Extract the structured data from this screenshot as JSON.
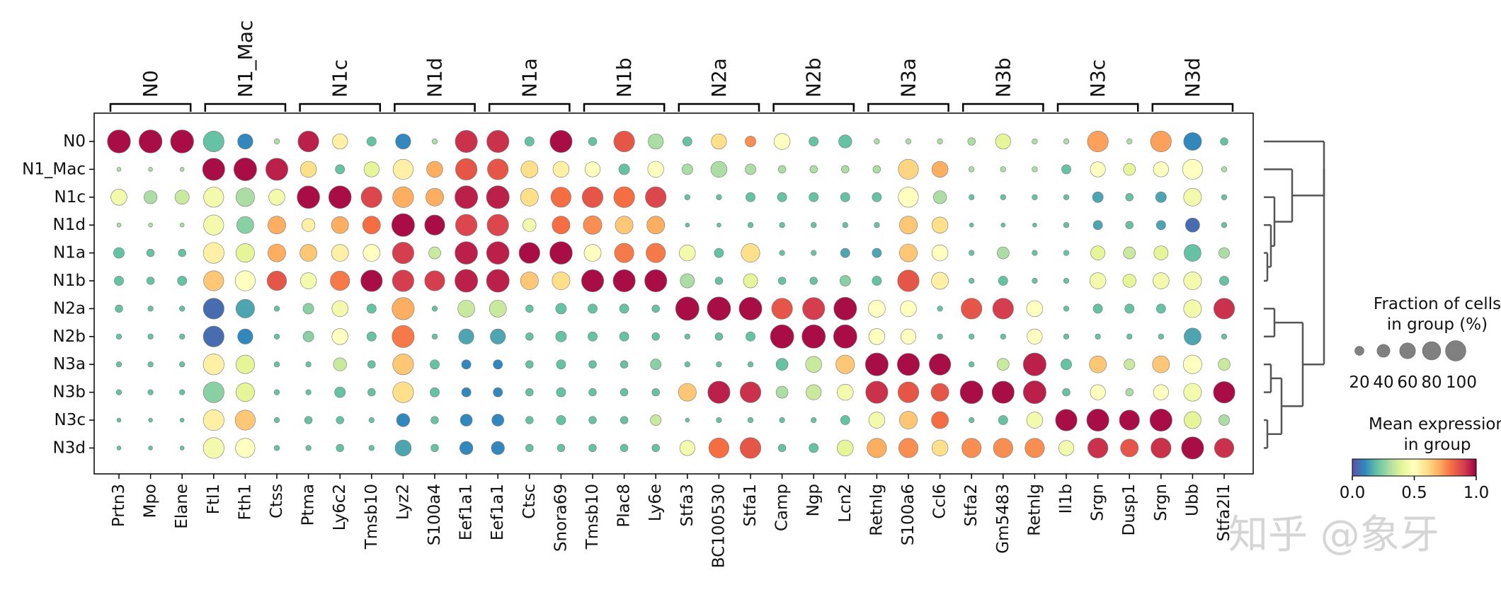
{
  "chart_data": {
    "type": "dotplot",
    "title": "",
    "row_labels": [
      "N0",
      "N1_Mac",
      "N1c",
      "N1d",
      "N1a",
      "N1b",
      "N2a",
      "N2b",
      "N3a",
      "N3b",
      "N3c",
      "N3d"
    ],
    "groups": [
      {
        "name": "N0",
        "genes": [
          "Prtn3",
          "Mpo",
          "Elane"
        ]
      },
      {
        "name": "N1_Mac",
        "genes": [
          "Ftl1",
          "Fth1",
          "Ctss"
        ]
      },
      {
        "name": "N1c",
        "genes": [
          "Ptma",
          "Ly6c2",
          "Tmsb10"
        ]
      },
      {
        "name": "N1d",
        "genes": [
          "Lyz2",
          "S100a4",
          "Eef1a1"
        ]
      },
      {
        "name": "N1a",
        "genes": [
          "Eef1a1",
          "Ctsc",
          "Snora69"
        ]
      },
      {
        "name": "N1b",
        "genes": [
          "Tmsb10",
          "Plac8",
          "Ly6e"
        ]
      },
      {
        "name": "N2a",
        "genes": [
          "Stfa3",
          "BC100530",
          "Stfa1"
        ]
      },
      {
        "name": "N2b",
        "genes": [
          "Camp",
          "Ngp",
          "Lcn2"
        ]
      },
      {
        "name": "N3a",
        "genes": [
          "Retnlg",
          "S100a6",
          "Ccl6"
        ]
      },
      {
        "name": "N3b",
        "genes": [
          "Stfa2",
          "Gm5483",
          "Retnlg"
        ]
      },
      {
        "name": "N3c",
        "genes": [
          "Il1b",
          "Srgn",
          "Dusp1"
        ]
      },
      {
        "name": "N3d",
        "genes": [
          "Srgn",
          "Ubb",
          "Stfa2l1"
        ]
      }
    ],
    "fraction_pct": [
      [
        92,
        92,
        92,
        75,
        40,
        5,
        75,
        40,
        15,
        40,
        5,
        85,
        85,
        15,
        85,
        12,
        75,
        40,
        15,
        40,
        20,
        45,
        15,
        30,
        5,
        5,
        5,
        10,
        40,
        5,
        5,
        75,
        5,
        75,
        55,
        10
      ],
      [
        3,
        3,
        3,
        85,
        90,
        85,
        45,
        15,
        40,
        70,
        45,
        80,
        75,
        50,
        45,
        40,
        20,
        45,
        20,
        45,
        20,
        10,
        10,
        10,
        10,
        70,
        45,
        5,
        5,
        5,
        15,
        40,
        25,
        40,
        70,
        5
      ],
      [
        45,
        30,
        35,
        70,
        60,
        45,
        88,
        88,
        75,
        75,
        55,
        90,
        90,
        55,
        70,
        75,
        75,
        75,
        5,
        5,
        15,
        15,
        15,
        15,
        15,
        70,
        30,
        5,
        5,
        5,
        5,
        20,
        10,
        20,
        55,
        5
      ],
      [
        3,
        3,
        3,
        70,
        50,
        55,
        30,
        50,
        55,
        90,
        70,
        80,
        80,
        30,
        55,
        60,
        55,
        55,
        3,
        3,
        5,
        5,
        5,
        5,
        5,
        55,
        45,
        3,
        3,
        3,
        5,
        15,
        10,
        15,
        35,
        5
      ],
      [
        20,
        10,
        10,
        75,
        60,
        55,
        50,
        50,
        50,
        80,
        25,
        88,
        88,
        75,
        88,
        50,
        65,
        65,
        45,
        15,
        60,
        5,
        5,
        15,
        15,
        55,
        45,
        5,
        25,
        5,
        5,
        35,
        25,
        35,
        50,
        20
      ],
      [
        15,
        10,
        15,
        70,
        70,
        65,
        45,
        65,
        80,
        80,
        70,
        90,
        90,
        55,
        55,
        85,
        85,
        85,
        35,
        10,
        35,
        10,
        10,
        20,
        15,
        80,
        50,
        5,
        15,
        5,
        5,
        45,
        30,
        45,
        55,
        15
      ],
      [
        10,
        5,
        5,
        75,
        60,
        5,
        20,
        45,
        15,
        85,
        5,
        50,
        50,
        10,
        20,
        15,
        15,
        10,
        95,
        95,
        90,
        75,
        85,
        90,
        50,
        45,
        5,
        75,
        75,
        45,
        5,
        15,
        15,
        15,
        55,
        75
      ],
      [
        5,
        5,
        5,
        75,
        40,
        5,
        20,
        45,
        15,
        85,
        5,
        40,
        40,
        10,
        20,
        15,
        15,
        10,
        5,
        10,
        15,
        95,
        95,
        95,
        45,
        40,
        5,
        5,
        5,
        40,
        5,
        5,
        5,
        5,
        50,
        5
      ],
      [
        5,
        5,
        5,
        75,
        60,
        5,
        5,
        30,
        10,
        75,
        15,
        15,
        15,
        10,
        15,
        10,
        10,
        20,
        5,
        5,
        5,
        25,
        45,
        60,
        90,
        85,
        80,
        5,
        25,
        90,
        20,
        50,
        20,
        50,
        60,
        25
      ],
      [
        5,
        5,
        5,
        75,
        60,
        5,
        5,
        20,
        10,
        75,
        15,
        15,
        15,
        10,
        15,
        10,
        10,
        10,
        55,
        85,
        75,
        25,
        40,
        45,
        85,
        75,
        55,
        90,
        85,
        90,
        10,
        40,
        10,
        40,
        55,
        80
      ],
      [
        3,
        3,
        3,
        75,
        70,
        5,
        10,
        10,
        5,
        30,
        10,
        25,
        25,
        10,
        15,
        10,
        10,
        20,
        3,
        5,
        5,
        5,
        5,
        15,
        45,
        55,
        50,
        5,
        15,
        45,
        80,
        85,
        70,
        85,
        50,
        20
      ],
      [
        3,
        3,
        3,
        75,
        65,
        5,
        5,
        10,
        5,
        45,
        10,
        30,
        30,
        10,
        10,
        10,
        10,
        10,
        40,
        70,
        75,
        10,
        15,
        45,
        65,
        65,
        45,
        65,
        65,
        65,
        40,
        70,
        55,
        70,
        85,
        65
      ]
    ],
    "mean_expression": [
      [
        0.98,
        0.98,
        0.98,
        0.2,
        0.1,
        0.3,
        0.95,
        0.55,
        0.2,
        0.1,
        0.3,
        0.92,
        0.92,
        0.2,
        0.98,
        0.2,
        0.85,
        0.3,
        0.2,
        0.6,
        0.75,
        0.5,
        0.2,
        0.2,
        0.3,
        0.3,
        0.3,
        0.3,
        0.4,
        0.3,
        0.3,
        0.72,
        0.3,
        0.72,
        0.1,
        0.2
      ],
      [
        0.3,
        0.3,
        0.3,
        0.98,
        0.98,
        0.95,
        0.6,
        0.2,
        0.4,
        0.55,
        0.7,
        0.85,
        0.85,
        0.6,
        0.55,
        0.5,
        0.2,
        0.5,
        0.3,
        0.3,
        0.3,
        0.3,
        0.3,
        0.3,
        0.3,
        0.62,
        0.7,
        0.3,
        0.3,
        0.3,
        0.2,
        0.5,
        0.4,
        0.5,
        0.5,
        0.3
      ],
      [
        0.45,
        0.3,
        0.35,
        0.45,
        0.3,
        0.45,
        0.98,
        0.98,
        0.88,
        0.7,
        0.7,
        0.95,
        0.95,
        0.6,
        0.8,
        0.85,
        0.8,
        0.88,
        0.2,
        0.2,
        0.2,
        0.2,
        0.2,
        0.2,
        0.2,
        0.5,
        0.3,
        0.2,
        0.2,
        0.2,
        0.2,
        0.15,
        0.2,
        0.15,
        0.45,
        0.2
      ],
      [
        0.3,
        0.3,
        0.3,
        0.45,
        0.25,
        0.7,
        0.55,
        0.7,
        0.8,
        0.98,
        0.98,
        0.88,
        0.88,
        0.45,
        0.8,
        0.75,
        0.65,
        0.7,
        0.2,
        0.2,
        0.2,
        0.2,
        0.2,
        0.2,
        0.2,
        0.65,
        0.6,
        0.2,
        0.2,
        0.2,
        0.2,
        0.15,
        0.2,
        0.15,
        0.05,
        0.2
      ],
      [
        0.2,
        0.2,
        0.2,
        0.55,
        0.4,
        0.7,
        0.65,
        0.55,
        0.5,
        0.9,
        0.35,
        0.95,
        0.95,
        0.98,
        0.98,
        0.5,
        0.78,
        0.78,
        0.45,
        0.2,
        0.6,
        0.2,
        0.2,
        0.15,
        0.15,
        0.65,
        0.5,
        0.2,
        0.3,
        0.2,
        0.2,
        0.4,
        0.35,
        0.4,
        0.2,
        0.3
      ],
      [
        0.2,
        0.2,
        0.2,
        0.65,
        0.5,
        0.85,
        0.45,
        0.78,
        0.98,
        0.9,
        0.9,
        0.95,
        0.95,
        0.65,
        0.6,
        0.98,
        0.98,
        0.98,
        0.3,
        0.2,
        0.4,
        0.2,
        0.2,
        0.25,
        0.2,
        0.85,
        0.55,
        0.2,
        0.2,
        0.2,
        0.2,
        0.45,
        0.4,
        0.45,
        0.45,
        0.2
      ],
      [
        0.2,
        0.2,
        0.2,
        0.05,
        0.15,
        0.2,
        0.25,
        0.45,
        0.2,
        0.7,
        0.2,
        0.35,
        0.35,
        0.2,
        0.2,
        0.2,
        0.2,
        0.2,
        0.98,
        0.98,
        0.98,
        0.85,
        0.9,
        0.98,
        0.5,
        0.5,
        0.2,
        0.85,
        0.9,
        0.5,
        0.2,
        0.2,
        0.2,
        0.2,
        0.45,
        0.92
      ],
      [
        0.2,
        0.2,
        0.2,
        0.05,
        0.1,
        0.2,
        0.25,
        0.5,
        0.2,
        0.78,
        0.2,
        0.15,
        0.15,
        0.2,
        0.2,
        0.2,
        0.2,
        0.2,
        0.2,
        0.2,
        0.2,
        0.98,
        0.98,
        0.98,
        0.5,
        0.5,
        0.2,
        0.2,
        0.2,
        0.5,
        0.2,
        0.2,
        0.2,
        0.2,
        0.15,
        0.2
      ],
      [
        0.2,
        0.2,
        0.2,
        0.55,
        0.4,
        0.2,
        0.2,
        0.35,
        0.2,
        0.65,
        0.2,
        0.1,
        0.1,
        0.2,
        0.2,
        0.2,
        0.2,
        0.25,
        0.2,
        0.2,
        0.2,
        0.2,
        0.35,
        0.65,
        0.98,
        0.98,
        0.98,
        0.2,
        0.35,
        0.95,
        0.2,
        0.65,
        0.35,
        0.65,
        0.5,
        0.35
      ],
      [
        0.2,
        0.2,
        0.2,
        0.25,
        0.4,
        0.2,
        0.2,
        0.2,
        0.2,
        0.6,
        0.2,
        0.1,
        0.1,
        0.2,
        0.2,
        0.2,
        0.2,
        0.2,
        0.65,
        0.95,
        0.92,
        0.3,
        0.35,
        0.45,
        0.92,
        0.85,
        0.85,
        0.98,
        0.98,
        0.95,
        0.2,
        0.5,
        0.3,
        0.5,
        0.45,
        0.98
      ],
      [
        0.2,
        0.2,
        0.2,
        0.55,
        0.65,
        0.2,
        0.2,
        0.2,
        0.2,
        0.1,
        0.2,
        0.1,
        0.1,
        0.2,
        0.2,
        0.2,
        0.2,
        0.35,
        0.2,
        0.2,
        0.2,
        0.2,
        0.2,
        0.2,
        0.45,
        0.65,
        0.8,
        0.2,
        0.2,
        0.45,
        0.98,
        0.98,
        0.98,
        0.98,
        0.4,
        0.3
      ],
      [
        0.2,
        0.2,
        0.2,
        0.45,
        0.5,
        0.2,
        0.2,
        0.2,
        0.2,
        0.15,
        0.2,
        0.1,
        0.1,
        0.2,
        0.2,
        0.2,
        0.2,
        0.2,
        0.45,
        0.8,
        0.85,
        0.2,
        0.2,
        0.4,
        0.7,
        0.75,
        0.6,
        0.75,
        0.75,
        0.75,
        0.45,
        0.92,
        0.85,
        0.92,
        0.98,
        0.92
      ]
    ],
    "size_legend": {
      "title_line1": "Fraction of cells",
      "title_line2": "in group (%)",
      "values": [
        20,
        40,
        60,
        80,
        100
      ],
      "labels": [
        "20",
        "40",
        "60",
        "80",
        "100"
      ]
    },
    "color_legend": {
      "title_line1": "Mean expression",
      "title_line2": "in group",
      "ticks": [
        "0.0",
        "0.5",
        "1.0"
      ],
      "vmin": 0,
      "vmax": 1,
      "colormap": "Spectral_r"
    },
    "dendrogram": {
      "type": "row-clustering"
    }
  },
  "watermark": "知乎 @象牙",
  "colors": {
    "stops": [
      "#5e4fa2",
      "#3288bd",
      "#66c2a5",
      "#abdda4",
      "#e6f598",
      "#ffffbf",
      "#fee08b",
      "#fdae61",
      "#f46d43",
      "#d53e4f",
      "#9e0142"
    ],
    "axis": "#000000",
    "dendrogram_line": "#555555",
    "dot_edge": "#777777"
  }
}
